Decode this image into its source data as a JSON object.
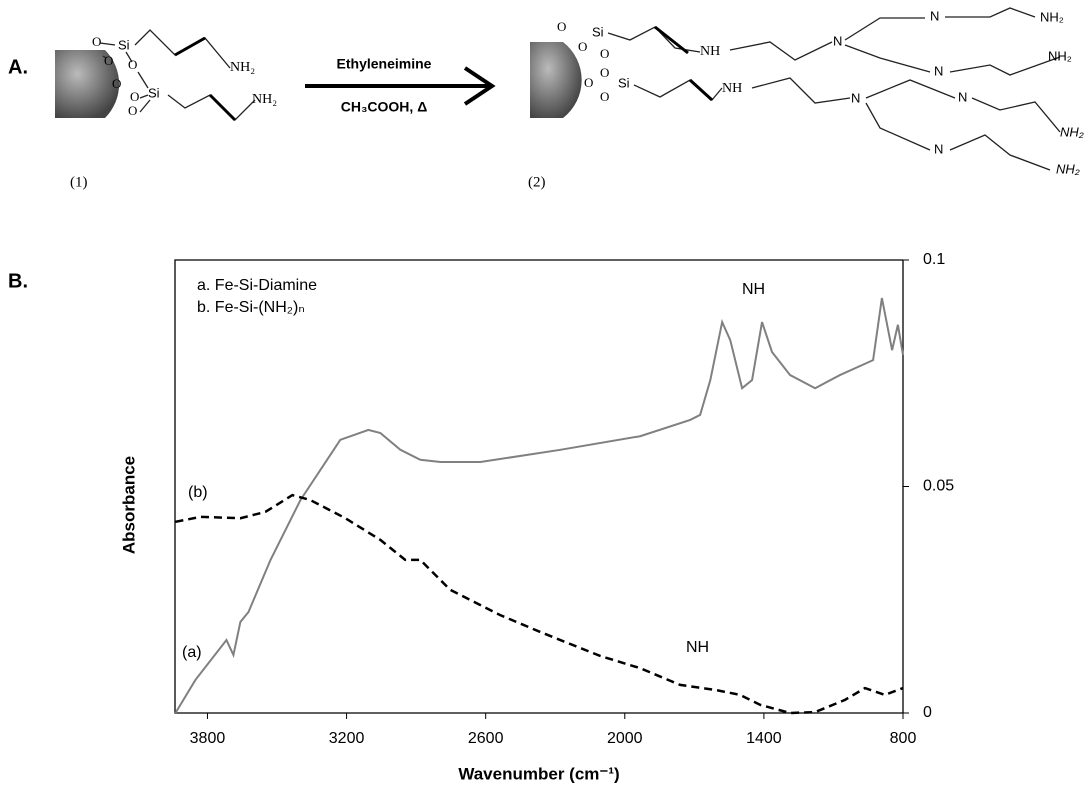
{
  "diagram": {
    "panel_label": "A.",
    "reagent": "Ethyleneimine",
    "conditions": "CH₃COOH, Δ",
    "compound1": {
      "label": "(1)",
      "oxygens": [
        "O",
        "O",
        "O",
        "O",
        "O",
        "O"
      ],
      "silicons": [
        "Si",
        "Si"
      ],
      "amines": [
        "NH₂",
        "NH₂"
      ]
    },
    "compound2": {
      "label": "(2)",
      "oxygens": [
        "O",
        "O",
        "O",
        "O",
        "O",
        "O"
      ],
      "silicons": [
        "Si",
        "Si"
      ],
      "secondary_amines": [
        "NH",
        "NH"
      ],
      "tertiary_amines": [
        "N",
        "N",
        "N",
        "N",
        "N",
        "N"
      ],
      "amines": [
        "NH₂",
        "NH₂",
        "NH₂",
        "NH₂"
      ]
    }
  },
  "chart_data": {
    "type": "line",
    "panel_label": "B.",
    "x_label": "Wavenumber (cm⁻¹)",
    "y_label": "Absorbance",
    "xlim": [
      3940,
      800
    ],
    "xticks": [
      3800,
      3200,
      2600,
      2000,
      1400,
      800
    ],
    "ylim": [
      0,
      0.1
    ],
    "yticks": [
      0,
      0.05,
      0.1
    ],
    "y_axis_side": "right",
    "legend": "upper left",
    "annotations": [
      "(a)",
      "(b)",
      "NH",
      "NH"
    ],
    "series": [
      {
        "name": "a. Fe-Si-Diamine",
        "color": "#808080",
        "line_style": "solid",
        "x": [
          3938,
          3852,
          3718,
          3688,
          3658,
          3623,
          3528,
          3399,
          3227,
          3106,
          3054,
          2968,
          2882,
          2795,
          2623,
          2278,
          1934,
          1718,
          1675,
          1631,
          1580,
          1545,
          1494,
          1451,
          1408,
          1365,
          1287,
          1179,
          1072,
          929,
          891,
          847,
          822,
          800
        ],
        "values": [
          0.0,
          0.0073,
          0.0161,
          0.0128,
          0.0201,
          0.0223,
          0.0338,
          0.047,
          0.0603,
          0.0625,
          0.0618,
          0.0581,
          0.0559,
          0.0554,
          0.0554,
          0.0581,
          0.0611,
          0.0647,
          0.0658,
          0.0735,
          0.0863,
          0.0823,
          0.0717,
          0.0735,
          0.0863,
          0.0797,
          0.0746,
          0.0717,
          0.0746,
          0.0779,
          0.0916,
          0.0801,
          0.0857,
          0.079
        ]
      },
      {
        "name": "b. Fe-Si-(NH₂)ₙ",
        "color": "#000000",
        "line_style": "dashed",
        "x": [
          3938,
          3830,
          3658,
          3550,
          3434,
          3356,
          3205,
          3054,
          2947,
          2882,
          2753,
          2537,
          2365,
          2278,
          2106,
          1934,
          1761,
          1610,
          1503,
          1416,
          1287,
          1179,
          1050,
          964,
          878,
          800
        ],
        "values": [
          0.0422,
          0.0433,
          0.043,
          0.0444,
          0.0481,
          0.047,
          0.043,
          0.0382,
          0.0338,
          0.0338,
          0.0272,
          0.0216,
          0.0179,
          0.0161,
          0.0126,
          0.0099,
          0.0062,
          0.0051,
          0.004,
          0.0018,
          0,
          0.0002,
          0.0029,
          0.0055,
          0.004,
          0.0055
        ]
      }
    ]
  }
}
